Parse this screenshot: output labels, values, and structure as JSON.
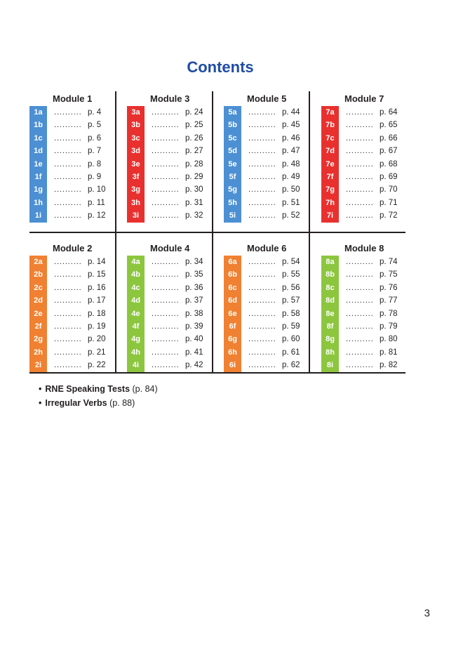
{
  "page": {
    "title": "Contents",
    "page_number": "3"
  },
  "theme": {
    "title_color": "#1F4CA5",
    "line_color": "#231F20",
    "text_color": "#231F20",
    "badge_text_color": "#FFFFFF",
    "blue": "#4C90D3",
    "red": "#E8312F",
    "orange": "#F08132",
    "green": "#8CC63F"
  },
  "toc": {
    "leader_dots": "..................",
    "bullet": "•"
  },
  "modules": [
    {
      "name": "Module 1",
      "color": "#4C90D3",
      "grid_row": 0,
      "grid_col": 0,
      "items": [
        {
          "label": "1a",
          "page": "p. 4"
        },
        {
          "label": "1b",
          "page": "p. 5"
        },
        {
          "label": "1c",
          "page": "p. 6"
        },
        {
          "label": "1d",
          "page": "p. 7"
        },
        {
          "label": "1e",
          "page": "p. 8"
        },
        {
          "label": "1f",
          "page": "p. 9"
        },
        {
          "label": "1g",
          "page": "p. 10"
        },
        {
          "label": "1h",
          "page": "p. 11"
        },
        {
          "label": "1i",
          "page": "p. 12"
        }
      ]
    },
    {
      "name": "Module 3",
      "color": "#E8312F",
      "grid_row": 0,
      "grid_col": 1,
      "items": [
        {
          "label": "3a",
          "page": "p. 24"
        },
        {
          "label": "3b",
          "page": "p. 25"
        },
        {
          "label": "3c",
          "page": "p. 26"
        },
        {
          "label": "3d",
          "page": "p. 27"
        },
        {
          "label": "3e",
          "page": "p. 28"
        },
        {
          "label": "3f",
          "page": "p. 29"
        },
        {
          "label": "3g",
          "page": "p. 30"
        },
        {
          "label": "3h",
          "page": "p. 31"
        },
        {
          "label": "3i",
          "page": "p. 32"
        }
      ]
    },
    {
      "name": "Module 5",
      "color": "#4C90D3",
      "grid_row": 0,
      "grid_col": 2,
      "items": [
        {
          "label": "5a",
          "page": "p. 44"
        },
        {
          "label": "5b",
          "page": "p. 45"
        },
        {
          "label": "5c",
          "page": "p. 46"
        },
        {
          "label": "5d",
          "page": "p. 47"
        },
        {
          "label": "5e",
          "page": "p. 48"
        },
        {
          "label": "5f",
          "page": "p. 49"
        },
        {
          "label": "5g",
          "page": "p. 50"
        },
        {
          "label": "5h",
          "page": "p. 51"
        },
        {
          "label": "5i",
          "page": "p. 52"
        }
      ]
    },
    {
      "name": "Module 7",
      "color": "#E8312F",
      "grid_row": 0,
      "grid_col": 3,
      "items": [
        {
          "label": "7a",
          "page": "p. 64"
        },
        {
          "label": "7b",
          "page": "p. 65"
        },
        {
          "label": "7c",
          "page": "p. 66"
        },
        {
          "label": "7d",
          "page": "p. 67"
        },
        {
          "label": "7e",
          "page": "p. 68"
        },
        {
          "label": "7f",
          "page": "p. 69"
        },
        {
          "label": "7g",
          "page": "p. 70"
        },
        {
          "label": "7h",
          "page": "p. 71"
        },
        {
          "label": "7i",
          "page": "p. 72"
        }
      ]
    },
    {
      "name": "Module 2",
      "color": "#F08132",
      "grid_row": 1,
      "grid_col": 0,
      "items": [
        {
          "label": "2a",
          "page": "p. 14"
        },
        {
          "label": "2b",
          "page": "p. 15"
        },
        {
          "label": "2c",
          "page": "p. 16"
        },
        {
          "label": "2d",
          "page": "p. 17"
        },
        {
          "label": "2e",
          "page": "p. 18"
        },
        {
          "label": "2f",
          "page": "p. 19"
        },
        {
          "label": "2g",
          "page": "p. 20"
        },
        {
          "label": "2h",
          "page": "p. 21"
        },
        {
          "label": "2i",
          "page": "p. 22"
        }
      ]
    },
    {
      "name": "Module 4",
      "color": "#8CC63F",
      "grid_row": 1,
      "grid_col": 1,
      "items": [
        {
          "label": "4a",
          "page": "p. 34"
        },
        {
          "label": "4b",
          "page": "p. 35"
        },
        {
          "label": "4c",
          "page": "p. 36"
        },
        {
          "label": "4d",
          "page": "p. 37"
        },
        {
          "label": "4e",
          "page": "p. 38"
        },
        {
          "label": "4f",
          "page": "p. 39"
        },
        {
          "label": "4g",
          "page": "p. 40"
        },
        {
          "label": "4h",
          "page": "p. 41"
        },
        {
          "label": "4i",
          "page": "p. 42"
        }
      ]
    },
    {
      "name": "Module 6",
      "color": "#F08132",
      "grid_row": 1,
      "grid_col": 2,
      "items": [
        {
          "label": "6a",
          "page": "p. 54"
        },
        {
          "label": "6b",
          "page": "p. 55"
        },
        {
          "label": "6c",
          "page": "p. 56"
        },
        {
          "label": "6d",
          "page": "p. 57"
        },
        {
          "label": "6e",
          "page": "p. 58"
        },
        {
          "label": "6f",
          "page": "p. 59"
        },
        {
          "label": "6g",
          "page": "p. 60"
        },
        {
          "label": "6h",
          "page": "p. 61"
        },
        {
          "label": "6i",
          "page": "p. 62"
        }
      ]
    },
    {
      "name": "Module 8",
      "color": "#8CC63F",
      "grid_row": 1,
      "grid_col": 3,
      "items": [
        {
          "label": "8a",
          "page": "p. 74"
        },
        {
          "label": "8b",
          "page": "p. 75"
        },
        {
          "label": "8c",
          "page": "p. 76"
        },
        {
          "label": "8d",
          "page": "p. 77"
        },
        {
          "label": "8e",
          "page": "p. 78"
        },
        {
          "label": "8f",
          "page": "p. 79"
        },
        {
          "label": "8g",
          "page": "p. 80"
        },
        {
          "label": "8h",
          "page": "p. 81"
        },
        {
          "label": "8i",
          "page": "p. 82"
        }
      ]
    }
  ],
  "extras": [
    {
      "label": "RNE Speaking Tests",
      "page_ref": "(p. 84)"
    },
    {
      "label": "Irregular Verbs",
      "page_ref": "(p. 88)"
    }
  ]
}
